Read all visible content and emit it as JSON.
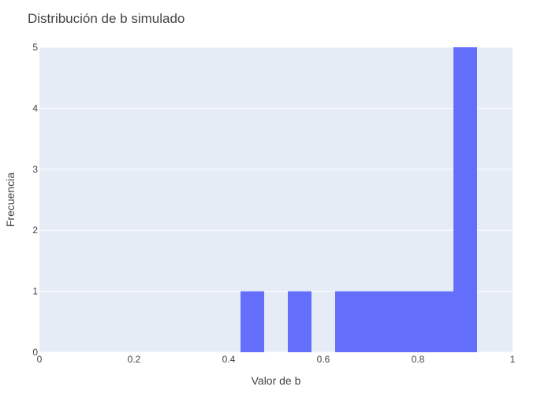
{
  "chart_data": {
    "type": "bar",
    "title": "Distribución de b simulado",
    "xlabel": "Valor de b",
    "ylabel": "Frecuencia",
    "xlim": [
      0,
      1
    ],
    "ylim": [
      0,
      5
    ],
    "x_ticks": [
      "0",
      "0.2",
      "0.4",
      "0.6",
      "0.8",
      "1"
    ],
    "y_ticks": [
      "0",
      "1",
      "2",
      "3",
      "4",
      "5"
    ],
    "bin_width": 0.05,
    "bins": [
      {
        "x0": 0.425,
        "x1": 0.475,
        "count": 1
      },
      {
        "x0": 0.525,
        "x1": 0.575,
        "count": 1
      },
      {
        "x0": 0.625,
        "x1": 0.675,
        "count": 1
      },
      {
        "x0": 0.675,
        "x1": 0.725,
        "count": 1
      },
      {
        "x0": 0.725,
        "x1": 0.775,
        "count": 1
      },
      {
        "x0": 0.775,
        "x1": 0.825,
        "count": 1
      },
      {
        "x0": 0.825,
        "x1": 0.875,
        "count": 1
      },
      {
        "x0": 0.875,
        "x1": 0.925,
        "count": 5
      }
    ],
    "bar_color": "#636efa",
    "plot_bg": "#e5ecf6",
    "grid": true,
    "legend": "none"
  }
}
